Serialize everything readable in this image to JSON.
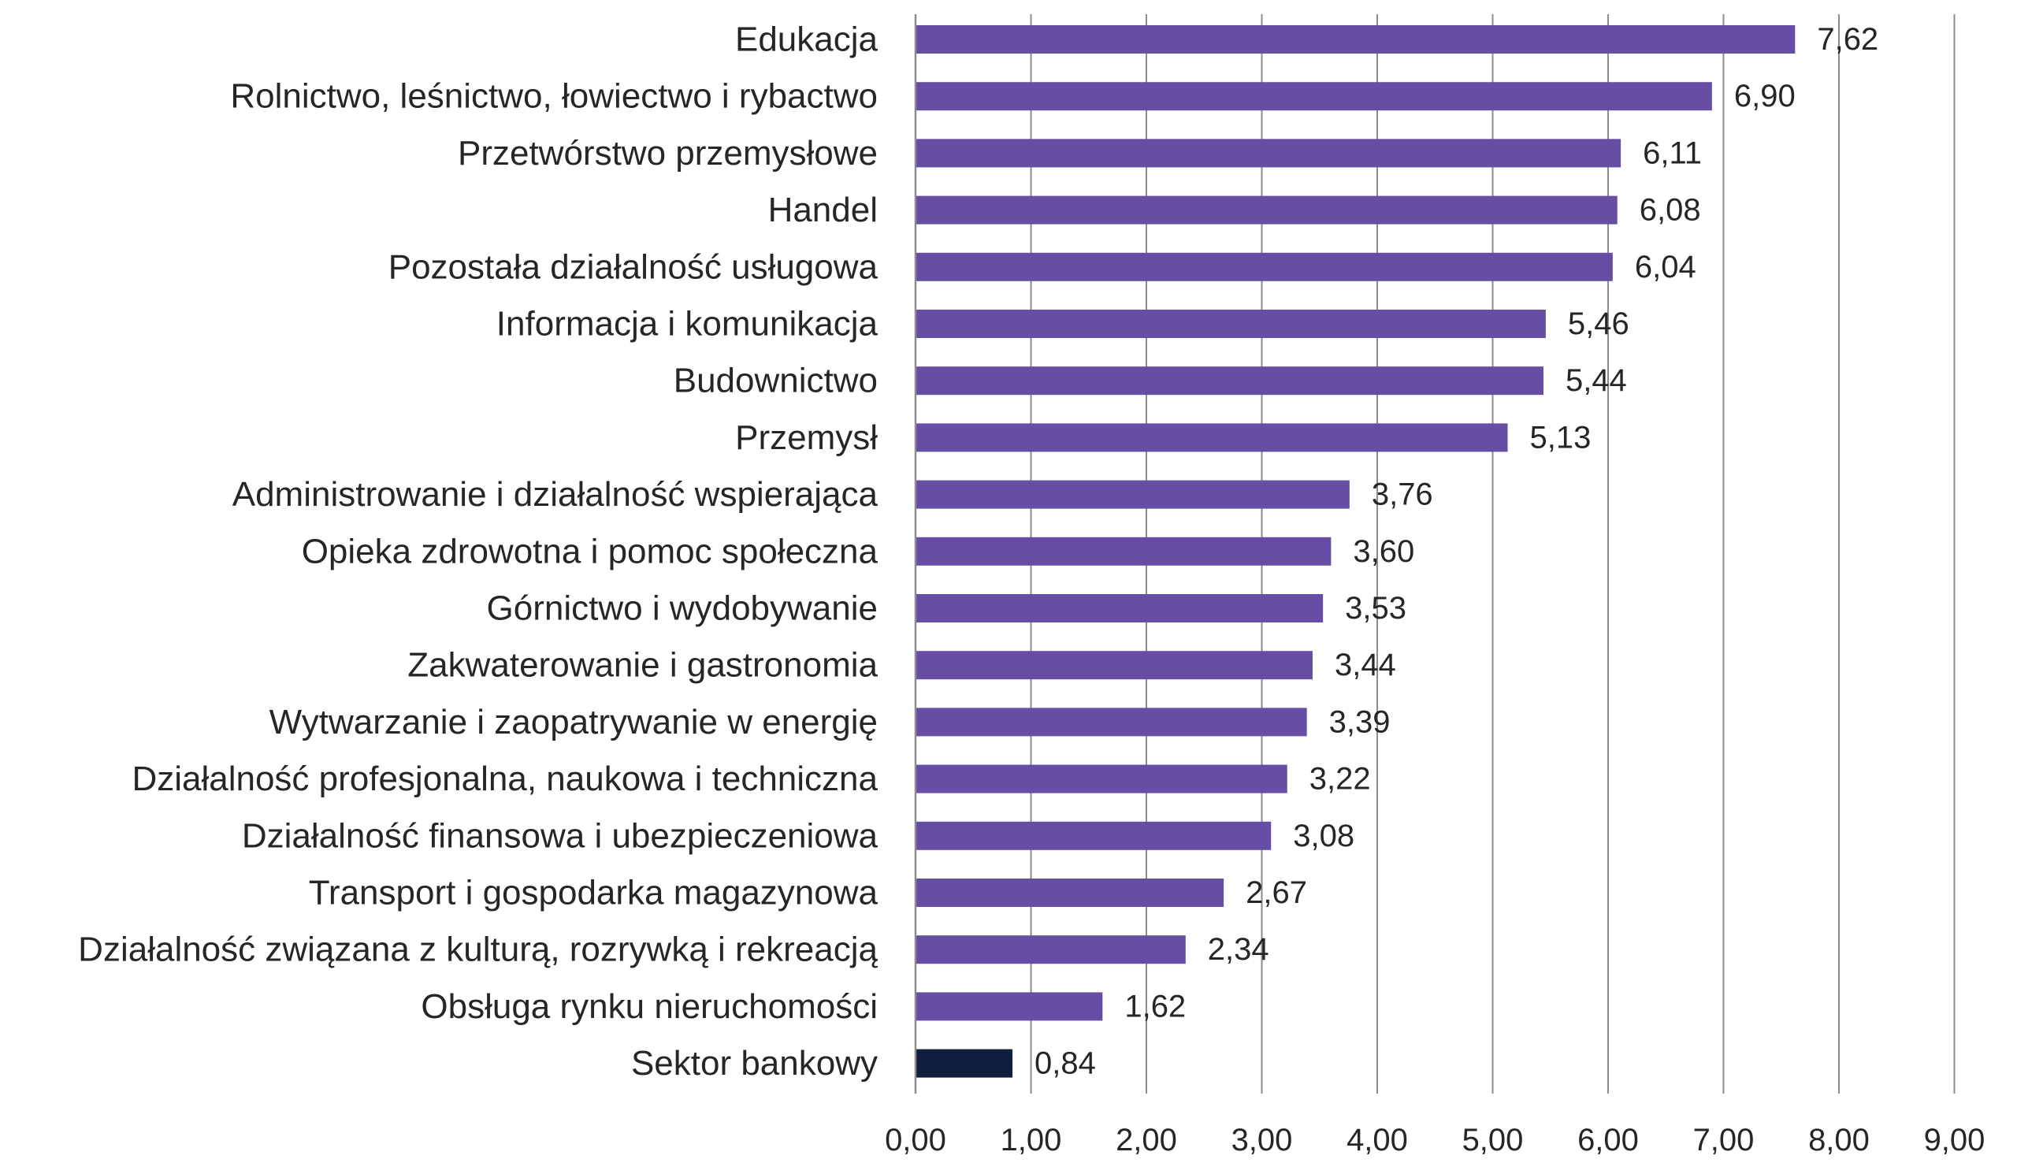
{
  "chart_data": {
    "type": "bar",
    "orientation": "horizontal",
    "categories": [
      "Edukacja",
      "Rolnictwo, leśnictwo, łowiectwo i rybactwo",
      "Przetwórstwo przemysłowe",
      "Handel",
      "Pozostała działalność usługowa",
      "Informacja i komunikacja",
      "Budownictwo",
      "Przemysł",
      "Administrowanie i działalność wspierająca",
      "Opieka zdrowotna i pomoc społeczna",
      "Górnictwo i wydobywanie",
      "Zakwaterowanie i gastronomia",
      "Wytwarzanie i zaopatrywanie w energię",
      "Działalność profesjonalna, naukowa i techniczna",
      "Działalność finansowa i ubezpieczeniowa",
      "Transport i gospodarka magazynowa",
      "Działalność związana z kulturą, rozrywką i rekreacją",
      "Obsługa rynku nieruchomości",
      "Sektor bankowy"
    ],
    "values": [
      7.62,
      6.9,
      6.11,
      6.08,
      6.04,
      5.46,
      5.44,
      5.13,
      3.76,
      3.6,
      3.53,
      3.44,
      3.39,
      3.22,
      3.08,
      2.67,
      2.34,
      1.62,
      0.84
    ],
    "value_labels": [
      "7,62",
      "6,90",
      "6,11",
      "6,08",
      "6,04",
      "5,46",
      "5,44",
      "5,13",
      "3,76",
      "3,60",
      "3,53",
      "3,44",
      "3,39",
      "3,22",
      "3,08",
      "2,67",
      "2,34",
      "1,62",
      "0,84"
    ],
    "bar_colors": [
      "#654ea3",
      "#654ea3",
      "#654ea3",
      "#654ea3",
      "#654ea3",
      "#654ea3",
      "#654ea3",
      "#654ea3",
      "#654ea3",
      "#654ea3",
      "#654ea3",
      "#654ea3",
      "#654ea3",
      "#654ea3",
      "#654ea3",
      "#654ea3",
      "#654ea3",
      "#654ea3",
      "#0f1f3d"
    ],
    "xlim": [
      0,
      9
    ],
    "x_ticks": [
      0,
      1,
      2,
      3,
      4,
      5,
      6,
      7,
      8,
      9
    ],
    "x_tick_labels": [
      "0,00",
      "1,00",
      "2,00",
      "3,00",
      "4,00",
      "5,00",
      "6,00",
      "7,00",
      "8,00",
      "9,00"
    ],
    "grid": "vertical",
    "legend": "none",
    "title": "",
    "xlabel": "",
    "ylabel": ""
  }
}
